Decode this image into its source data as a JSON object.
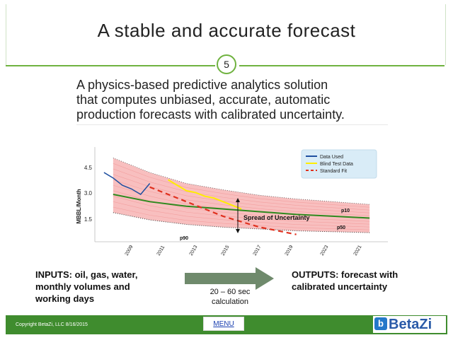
{
  "slide": {
    "title": "A stable and accurate forecast",
    "number": "5",
    "subtitle_lines": [
      "A physics-based predictive analytics solution",
      "that computes unbiased, accurate, automatic",
      "production forecasts with calibrated uncertainty."
    ]
  },
  "chart_data": {
    "type": "line",
    "ylabel": "MBBL/Month",
    "ytick_labels": [
      "4.5",
      "3.0",
      "1.5"
    ],
    "xtick_labels": [
      "2009",
      "2011",
      "2013",
      "2015",
      "2017",
      "2019",
      "2023",
      "2021"
    ],
    "legend": [
      "Data Used",
      "Blind Test Data",
      "Standard Fit"
    ],
    "legend_position": "top-right",
    "annotations": [
      "Spread of Uncertainty",
      "p10",
      "p50",
      "p90"
    ],
    "colors": {
      "data_used": "#1f4fa0",
      "blind_test": "#ffee00",
      "standard_fit": "#e0301e",
      "p50": "#2e8a1e",
      "band": "#f07070"
    },
    "series": [
      {
        "name": "Data Used",
        "x": [
          2007.5,
          2008.0,
          2008.5,
          2009.0,
          2009.5,
          2010.0
        ],
        "y": [
          3.8,
          3.5,
          3.1,
          2.9,
          2.6,
          3.2
        ]
      },
      {
        "name": "Blind Test Data",
        "x": [
          2011.0,
          2011.5,
          2012.0,
          2012.5,
          2013.0,
          2013.5,
          2014.0,
          2014.5,
          2015.0
        ],
        "y": [
          3.4,
          3.1,
          2.8,
          2.7,
          2.5,
          2.4,
          2.2,
          2.0,
          1.8
        ]
      },
      {
        "name": "Standard Fit",
        "x": [
          2010.0,
          2012.0,
          2014.0,
          2016.0,
          2018.0
        ],
        "y": [
          3.0,
          2.2,
          1.4,
          0.8,
          0.4
        ]
      },
      {
        "name": "p50",
        "x": [
          2008.0,
          2010.0,
          2012.0,
          2014.0,
          2016.0,
          2018.0,
          2020.0,
          2022.0
        ],
        "y": [
          2.6,
          2.2,
          1.95,
          1.8,
          1.65,
          1.5,
          1.4,
          1.3
        ]
      },
      {
        "name": "p10",
        "x": [
          2008.0,
          2010.0,
          2012.0,
          2014.0,
          2016.0,
          2018.0,
          2020.0,
          2022.0
        ],
        "y": [
          4.6,
          3.8,
          3.2,
          2.85,
          2.55,
          2.35,
          2.2,
          2.05
        ]
      },
      {
        "name": "p90",
        "x": [
          2008.0,
          2010.0,
          2012.0,
          2014.0,
          2016.0,
          2018.0,
          2020.0,
          2022.0
        ],
        "y": [
          1.6,
          1.2,
          0.95,
          0.8,
          0.7,
          0.6,
          0.55,
          0.5
        ]
      }
    ]
  },
  "flow": {
    "inputs_lines": [
      "INPUTS: oil, gas, water,",
      "monthly volumes and",
      "working days"
    ],
    "calc_lines": [
      "20 – 60 sec",
      "calculation"
    ],
    "outputs_lines": [
      "OUTPUTS: forecast with",
      "calibrated uncertainty"
    ]
  },
  "footer": {
    "copyright": "Copyright BetaZi, LLC  8/16/2015",
    "menu_label": "MENU",
    "logo_text": "BetaZi",
    "logo_mark": "b"
  }
}
